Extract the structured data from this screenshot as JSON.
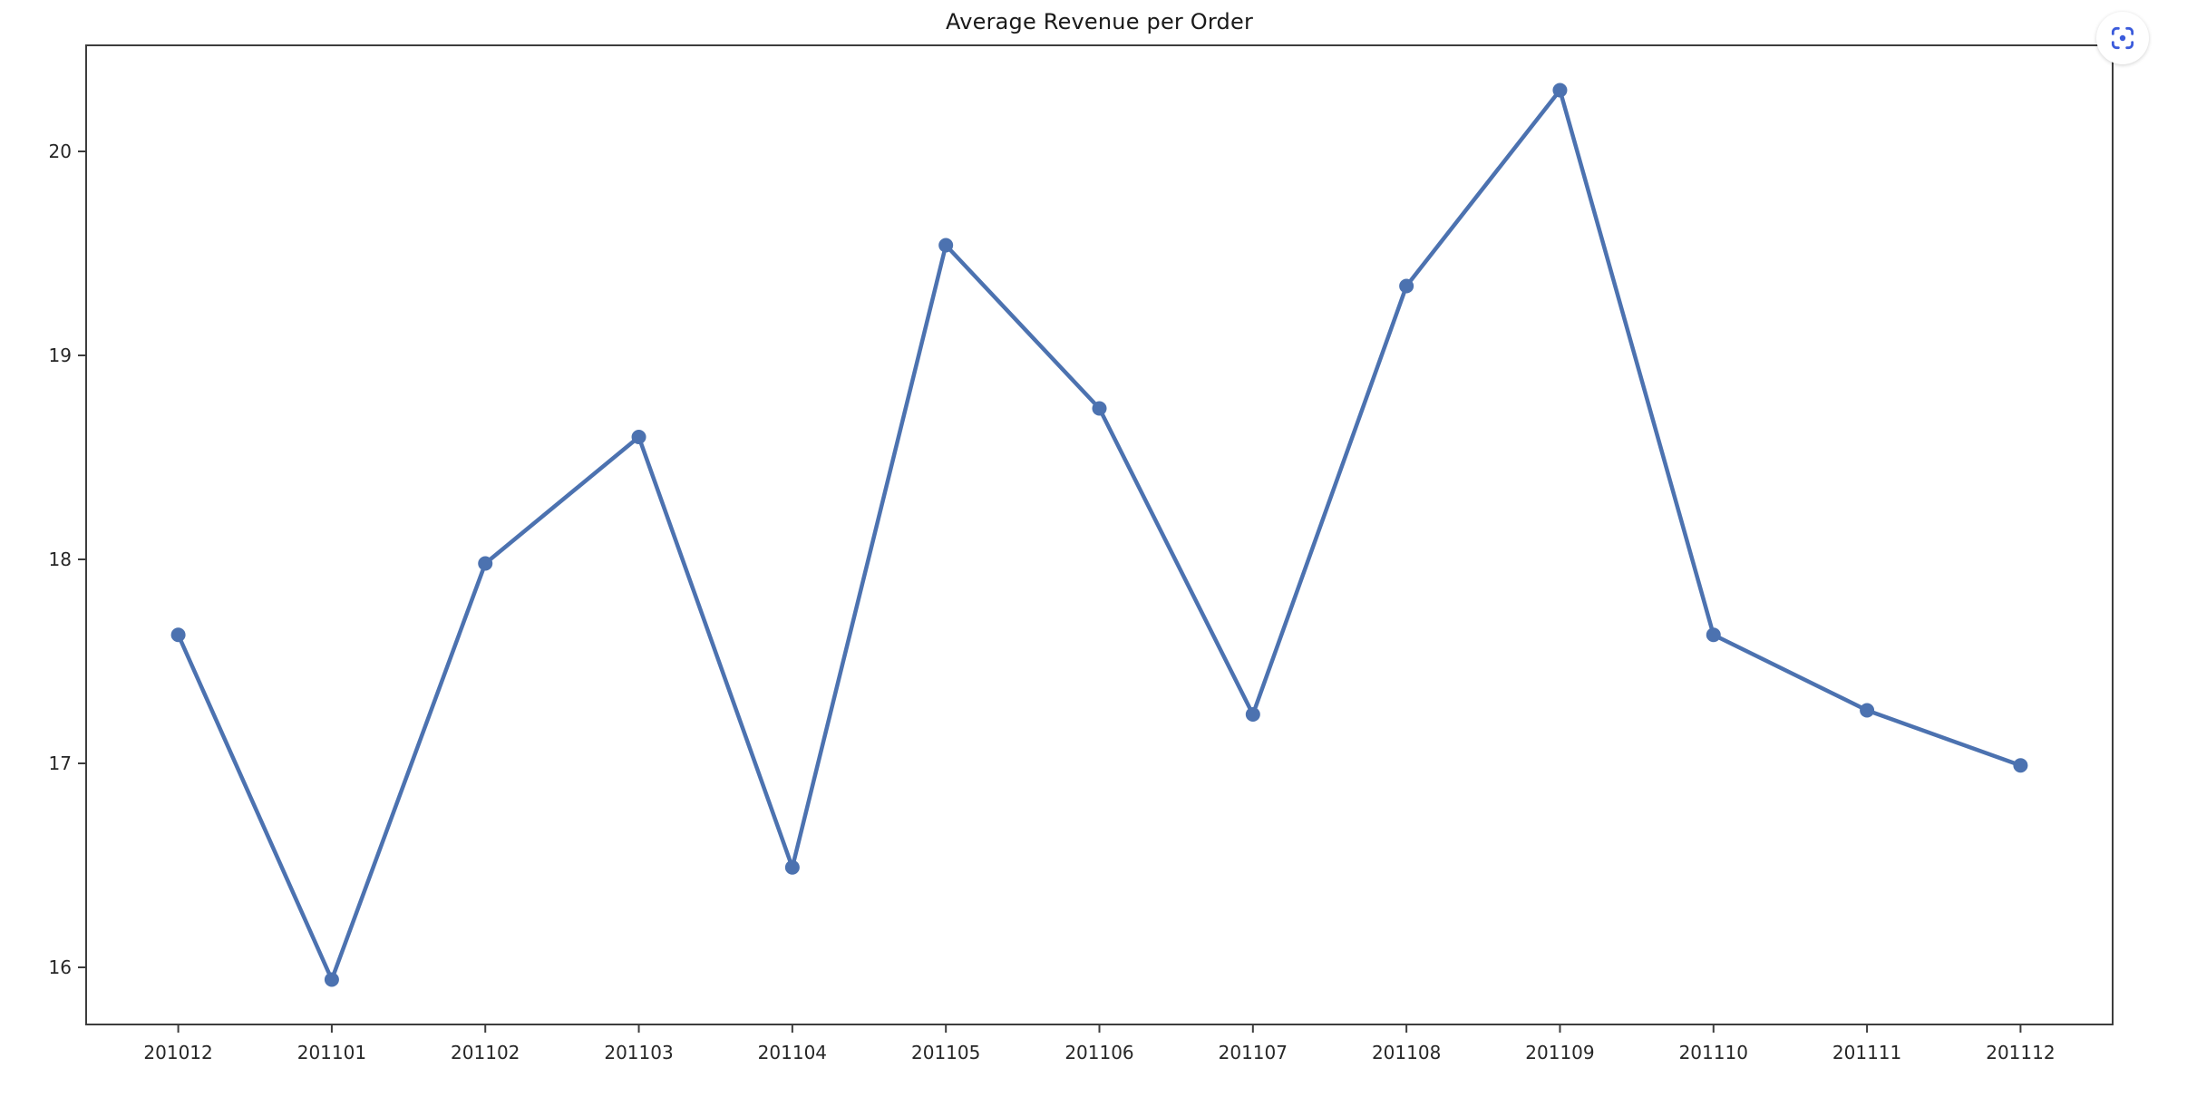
{
  "header": {
    "title": "Average Revenue per Order"
  },
  "controls": {
    "region_capture_tooltip": "Capture region",
    "icon_color": "#3b5bdb"
  },
  "chart_data": {
    "type": "line",
    "title": "Average Revenue per Order",
    "categories": [
      "201012",
      "201101",
      "201102",
      "201103",
      "201104",
      "201105",
      "201106",
      "201107",
      "201108",
      "201109",
      "201110",
      "201111",
      "201112"
    ],
    "series": [
      {
        "name": "Average Revenue per Order",
        "values": [
          17.63,
          15.94,
          17.98,
          18.6,
          16.49,
          19.54,
          18.74,
          17.24,
          19.34,
          20.3,
          17.63,
          17.26,
          16.99
        ]
      }
    ],
    "xlabel": "",
    "ylabel": "",
    "y_ticks": [
      16,
      17,
      18,
      19,
      20
    ],
    "ylim": [
      15.72,
      20.52
    ],
    "xlim": [
      -0.6,
      12.6
    ],
    "grid": false,
    "legend_position": "none",
    "line_color": "#4c72b0",
    "marker": "o",
    "axis_color": "#3d3d3d",
    "tick_label_color": "#262626"
  }
}
